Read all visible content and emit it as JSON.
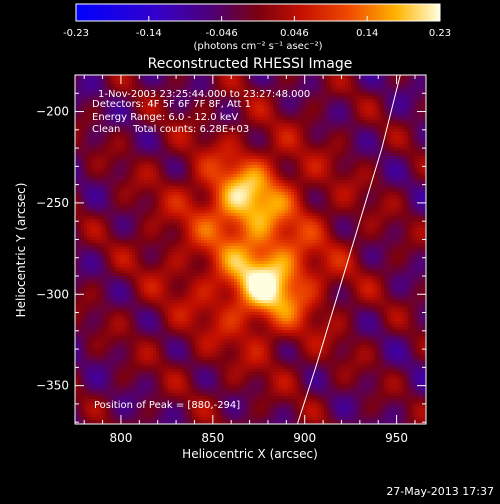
{
  "colorbar": {
    "ticks": [
      "-0.23",
      "-0.14",
      "-0.046",
      "0.046",
      "0.14",
      "0.23"
    ],
    "unit_label": "(photons cm⁻² s⁻¹ asec⁻²)"
  },
  "image": {
    "title": "Reconstructed RHESSI Image",
    "time_range": "1-Nov-2003 23:25:44.000 to 23:27:48.000",
    "detectors": "Detectors: 4F 5F 6F 7F 8F, Att 1",
    "energy_range": "Energy Range: 6.0 - 12.0 keV",
    "clean_counts": "Clean    Total counts: 6.28E+03",
    "peak_position": "Position of Peak = [880,-294]"
  },
  "axes": {
    "xlabel": "Heliocentric X (arcsec)",
    "ylabel": "Heliocentric Y (arcsec)",
    "xticks": [
      "800",
      "850",
      "900",
      "950"
    ],
    "yticks": [
      "-200",
      "-250",
      "-300",
      "-350"
    ]
  },
  "footer": {
    "date": "27-May-2013 17:37"
  },
  "chart_data": {
    "type": "heatmap",
    "title": "Reconstructed RHESSI Image",
    "xlabel": "Heliocentric X (arcsec)",
    "ylabel": "Heliocentric Y (arcsec)",
    "xlim": [
      775,
      966
    ],
    "ylim": [
      -371,
      -180
    ],
    "color_scale": {
      "min": -0.23,
      "max": 0.23,
      "unit": "photons cm^-2 s^-1 asec^-2"
    },
    "peak": {
      "x": 880,
      "y": -294
    },
    "sources": [
      {
        "x": 868,
        "y": -248,
        "amplitude": 0.2
      },
      {
        "x": 880,
        "y": -294,
        "amplitude": 0.23
      }
    ],
    "limb_curve": [
      [
        896,
        -371
      ],
      [
        906,
        -340
      ],
      [
        918,
        -300
      ],
      [
        930,
        -260
      ],
      [
        942,
        -220
      ],
      [
        952,
        -180
      ]
    ]
  }
}
